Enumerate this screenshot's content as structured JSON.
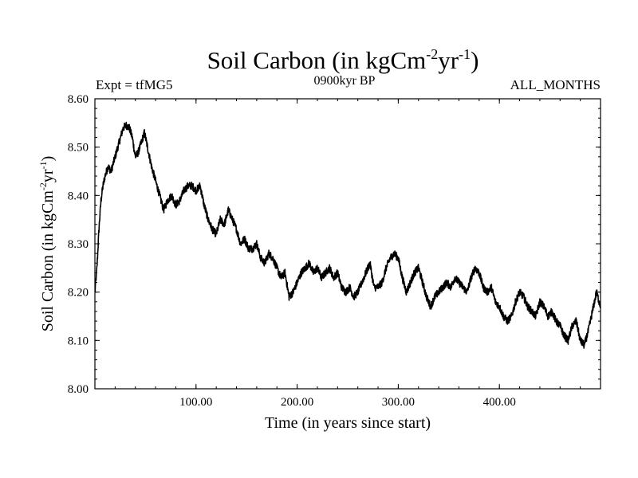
{
  "chart_data": {
    "type": "line",
    "title": "Soil Carbon (in kgCm",
    "title_sup1": "-2",
    "title_mid": "yr",
    "title_sup2": "-1",
    "title_end": ")",
    "subtitle_left": "Expt = tfMG5",
    "subtitle_center": "0900kyr BP",
    "subtitle_right": "ALL_MONTHS",
    "xlabel": "Time (in years since start)",
    "ylabel": "Soil Carbon (in kgCm",
    "ylabel_sup1": "-2",
    "ylabel_mid": "yr",
    "ylabel_sup2": "-1",
    "ylabel_end": ")",
    "xlim": [
      0,
      500
    ],
    "ylim": [
      8.0,
      8.6
    ],
    "x_ticks": [
      {
        "value": 100,
        "label": "100.00"
      },
      {
        "value": 200,
        "label": "200.00"
      },
      {
        "value": 300,
        "label": "300.00"
      },
      {
        "value": 400,
        "label": "400.00"
      }
    ],
    "y_ticks": [
      {
        "value": 8.0,
        "label": "8.00"
      },
      {
        "value": 8.1,
        "label": "8.10"
      },
      {
        "value": 8.2,
        "label": "8.20"
      },
      {
        "value": 8.3,
        "label": "8.30"
      },
      {
        "value": 8.4,
        "label": "8.40"
      },
      {
        "value": 8.5,
        "label": "8.50"
      },
      {
        "value": 8.6,
        "label": "8.60"
      }
    ],
    "series": [
      {
        "name": "Soil Carbon",
        "color": "#000000",
        "x": [
          0,
          2,
          4,
          6,
          8,
          10,
          13,
          16,
          20,
          24,
          28,
          31,
          34,
          37,
          40,
          43,
          46,
          49,
          52,
          56,
          60,
          64,
          68,
          72,
          76,
          80,
          84,
          88,
          92,
          96,
          100,
          104,
          108,
          112,
          116,
          120,
          124,
          128,
          132,
          136,
          140,
          144,
          148,
          152,
          156,
          160,
          164,
          168,
          172,
          176,
          180,
          184,
          188,
          192,
          196,
          200,
          204,
          208,
          212,
          216,
          220,
          224,
          228,
          232,
          236,
          240,
          244,
          248,
          252,
          256,
          260,
          264,
          268,
          272,
          276,
          280,
          284,
          288,
          292,
          296,
          300,
          304,
          308,
          312,
          316,
          320,
          324,
          328,
          332,
          336,
          340,
          344,
          348,
          352,
          356,
          360,
          364,
          368,
          372,
          376,
          380,
          384,
          388,
          392,
          396,
          400,
          404,
          408,
          412,
          416,
          420,
          424,
          428,
          432,
          436,
          440,
          444,
          448,
          452,
          456,
          460,
          464,
          468,
          472,
          476,
          480,
          484,
          488,
          492,
          496,
          500
        ],
        "values": [
          8.2,
          8.25,
          8.33,
          8.39,
          8.42,
          8.44,
          8.46,
          8.45,
          8.48,
          8.51,
          8.54,
          8.545,
          8.54,
          8.52,
          8.48,
          8.49,
          8.51,
          8.53,
          8.5,
          8.46,
          8.43,
          8.4,
          8.37,
          8.39,
          8.4,
          8.38,
          8.39,
          8.41,
          8.42,
          8.42,
          8.41,
          8.42,
          8.38,
          8.35,
          8.33,
          8.32,
          8.35,
          8.34,
          8.37,
          8.35,
          8.33,
          8.3,
          8.31,
          8.29,
          8.29,
          8.3,
          8.27,
          8.26,
          8.28,
          8.27,
          8.25,
          8.23,
          8.24,
          8.19,
          8.2,
          8.22,
          8.24,
          8.25,
          8.26,
          8.24,
          8.25,
          8.23,
          8.24,
          8.25,
          8.23,
          8.24,
          8.21,
          8.2,
          8.21,
          8.19,
          8.2,
          8.22,
          8.24,
          8.26,
          8.21,
          8.21,
          8.22,
          8.25,
          8.27,
          8.28,
          8.27,
          8.23,
          8.2,
          8.22,
          8.24,
          8.25,
          8.22,
          8.19,
          8.17,
          8.19,
          8.2,
          8.21,
          8.22,
          8.21,
          8.23,
          8.22,
          8.21,
          8.2,
          8.23,
          8.25,
          8.24,
          8.21,
          8.2,
          8.21,
          8.18,
          8.17,
          8.15,
          8.14,
          8.15,
          8.18,
          8.2,
          8.19,
          8.17,
          8.16,
          8.15,
          8.18,
          8.17,
          8.15,
          8.16,
          8.14,
          8.13,
          8.11,
          8.1,
          8.13,
          8.14,
          8.1,
          8.09,
          8.12,
          8.16,
          8.2,
          8.17
        ]
      }
    ]
  }
}
